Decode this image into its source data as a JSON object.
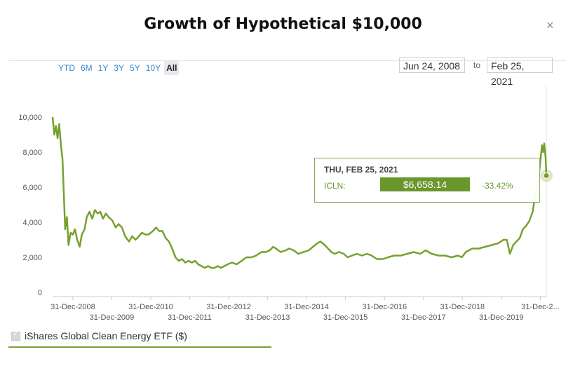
{
  "title": "Growth of Hypothetical $10,000",
  "close_icon": "close-icon",
  "range_buttons": [
    "YTD",
    "6M",
    "1Y",
    "3Y",
    "5Y",
    "10Y",
    "All"
  ],
  "active_range": "All",
  "date_from": "Jun 24, 2008",
  "date_to_label": "to",
  "date_to": "Feb 25, 2021",
  "tooltip": {
    "date": "THU, FEB 25, 2021",
    "series": "ICLN:",
    "value": "$6,658.14",
    "change": "-33.42%"
  },
  "legend": {
    "label": "iShares Global Clean Energy ETF ($)",
    "checked": true
  },
  "colors": {
    "line": "#76a12f",
    "accent": "#6a962e",
    "tick": "#555555",
    "grid": "#e6e6e6"
  },
  "chart_data": {
    "type": "line",
    "ylim": [
      0,
      10000
    ],
    "yticks": [
      "0",
      "2,000",
      "4,000",
      "6,000",
      "8,000",
      "10,000"
    ],
    "xtick_labels": [
      "31-Dec-2008",
      "31-Dec-2009",
      "31-Dec-2010",
      "31-Dec-2011",
      "31-Dec-2012",
      "31-Dec-2013",
      "31-Dec-2014",
      "31-Dec-2015",
      "31-Dec-2016",
      "31-Dec-2017",
      "31-Dec-2018",
      "31-Dec-2019",
      "31-Dec-2..."
    ],
    "xtick_dates": [
      "2008-12-31",
      "2009-12-31",
      "2010-12-31",
      "2011-12-31",
      "2012-12-31",
      "2013-12-31",
      "2014-12-31",
      "2015-12-31",
      "2016-12-31",
      "2017-12-31",
      "2018-12-31",
      "2019-12-31",
      "2020-12-31"
    ],
    "xlim": [
      "2008-06-24",
      "2021-02-25"
    ],
    "series": [
      {
        "values": [
          [
            "2008-06-24",
            10000
          ],
          [
            "2008-07-10",
            9000
          ],
          [
            "2008-07-25",
            9500
          ],
          [
            "2008-08-10",
            8800
          ],
          [
            "2008-08-25",
            9600
          ],
          [
            "2008-09-10",
            8400
          ],
          [
            "2008-09-25",
            7600
          ],
          [
            "2008-10-10",
            5200
          ],
          [
            "2008-10-20",
            3600
          ],
          [
            "2008-11-05",
            4300
          ],
          [
            "2008-11-20",
            2700
          ],
          [
            "2008-12-10",
            3400
          ],
          [
            "2008-12-31",
            3300
          ],
          [
            "2009-01-20",
            3600
          ],
          [
            "2009-02-10",
            3000
          ],
          [
            "2009-03-05",
            2600
          ],
          [
            "2009-03-25",
            3300
          ],
          [
            "2009-04-20",
            3600
          ],
          [
            "2009-05-10",
            4300
          ],
          [
            "2009-06-05",
            4600
          ],
          [
            "2009-07-01",
            4200
          ],
          [
            "2009-07-25",
            4700
          ],
          [
            "2009-08-20",
            4500
          ],
          [
            "2009-09-15",
            4600
          ],
          [
            "2009-10-10",
            4200
          ],
          [
            "2009-11-05",
            4500
          ],
          [
            "2009-12-01",
            4300
          ],
          [
            "2010-01-05",
            4100
          ],
          [
            "2010-02-05",
            3700
          ],
          [
            "2010-03-05",
            3900
          ],
          [
            "2010-04-05",
            3700
          ],
          [
            "2010-05-05",
            3200
          ],
          [
            "2010-06-10",
            2900
          ],
          [
            "2010-07-10",
            3200
          ],
          [
            "2010-08-10",
            3000
          ],
          [
            "2010-09-10",
            3200
          ],
          [
            "2010-10-10",
            3400
          ],
          [
            "2010-11-10",
            3300
          ],
          [
            "2010-12-10",
            3300
          ],
          [
            "2011-01-20",
            3500
          ],
          [
            "2011-02-20",
            3700
          ],
          [
            "2011-03-20",
            3500
          ],
          [
            "2011-04-20",
            3500
          ],
          [
            "2011-05-20",
            3100
          ],
          [
            "2011-06-20",
            2900
          ],
          [
            "2011-07-20",
            2500
          ],
          [
            "2011-08-20",
            2000
          ],
          [
            "2011-09-20",
            1800
          ],
          [
            "2011-10-20",
            1900
          ],
          [
            "2011-11-20",
            1700
          ],
          [
            "2011-12-20",
            1800
          ],
          [
            "2012-01-20",
            1700
          ],
          [
            "2012-02-20",
            1800
          ],
          [
            "2012-03-20",
            1600
          ],
          [
            "2012-04-20",
            1500
          ],
          [
            "2012-05-20",
            1400
          ],
          [
            "2012-06-20",
            1500
          ],
          [
            "2012-07-20",
            1400
          ],
          [
            "2012-08-20",
            1400
          ],
          [
            "2012-09-20",
            1500
          ],
          [
            "2012-10-20",
            1400
          ],
          [
            "2012-11-20",
            1500
          ],
          [
            "2012-12-20",
            1600
          ],
          [
            "2013-02-01",
            1700
          ],
          [
            "2013-03-15",
            1600
          ],
          [
            "2013-05-01",
            1800
          ],
          [
            "2013-06-15",
            2000
          ],
          [
            "2013-08-01",
            2000
          ],
          [
            "2013-09-15",
            2100
          ],
          [
            "2013-11-01",
            2300
          ],
          [
            "2013-12-15",
            2300
          ],
          [
            "2014-01-20",
            2400
          ],
          [
            "2014-02-20",
            2600
          ],
          [
            "2014-03-20",
            2500
          ],
          [
            "2014-05-01",
            2300
          ],
          [
            "2014-06-20",
            2400
          ],
          [
            "2014-07-20",
            2500
          ],
          [
            "2014-09-01",
            2400
          ],
          [
            "2014-10-15",
            2200
          ],
          [
            "2014-12-01",
            2300
          ],
          [
            "2015-01-20",
            2400
          ],
          [
            "2015-03-01",
            2600
          ],
          [
            "2015-04-10",
            2800
          ],
          [
            "2015-05-10",
            2900
          ],
          [
            "2015-06-20",
            2700
          ],
          [
            "2015-07-20",
            2500
          ],
          [
            "2015-08-20",
            2300
          ],
          [
            "2015-09-20",
            2200
          ],
          [
            "2015-11-01",
            2300
          ],
          [
            "2015-12-15",
            2200
          ],
          [
            "2016-01-20",
            2000
          ],
          [
            "2016-03-01",
            2100
          ],
          [
            "2016-04-15",
            2200
          ],
          [
            "2016-06-01",
            2100
          ],
          [
            "2016-07-20",
            2200
          ],
          [
            "2016-09-01",
            2100
          ],
          [
            "2016-10-20",
            1900
          ],
          [
            "2016-12-15",
            1900
          ],
          [
            "2017-02-01",
            2000
          ],
          [
            "2017-04-01",
            2100
          ],
          [
            "2017-06-01",
            2100
          ],
          [
            "2017-08-01",
            2200
          ],
          [
            "2017-10-01",
            2300
          ],
          [
            "2017-12-01",
            2200
          ],
          [
            "2018-01-20",
            2400
          ],
          [
            "2018-03-20",
            2200
          ],
          [
            "2018-05-20",
            2100
          ],
          [
            "2018-07-20",
            2100
          ],
          [
            "2018-09-20",
            2000
          ],
          [
            "2018-11-20",
            2100
          ],
          [
            "2018-12-25",
            2000
          ],
          [
            "2019-02-01",
            2300
          ],
          [
            "2019-04-01",
            2500
          ],
          [
            "2019-06-01",
            2500
          ],
          [
            "2019-08-01",
            2600
          ],
          [
            "2019-10-01",
            2700
          ],
          [
            "2019-12-01",
            2800
          ],
          [
            "2020-01-20",
            3000
          ],
          [
            "2020-02-20",
            3000
          ],
          [
            "2020-03-20",
            2200
          ],
          [
            "2020-04-20",
            2700
          ],
          [
            "2020-05-20",
            2900
          ],
          [
            "2020-06-20",
            3100
          ],
          [
            "2020-07-20",
            3600
          ],
          [
            "2020-08-20",
            3800
          ],
          [
            "2020-09-20",
            4100
          ],
          [
            "2020-10-20",
            4600
          ],
          [
            "2020-11-20",
            5800
          ],
          [
            "2020-12-15",
            6500
          ],
          [
            "2021-01-05",
            7800
          ],
          [
            "2021-01-15",
            8400
          ],
          [
            "2021-01-25",
            8000
          ],
          [
            "2021-02-05",
            8500
          ],
          [
            "2021-02-12",
            8100
          ],
          [
            "2021-02-19",
            7600
          ],
          [
            "2021-02-25",
            6658.14
          ]
        ]
      }
    ]
  }
}
